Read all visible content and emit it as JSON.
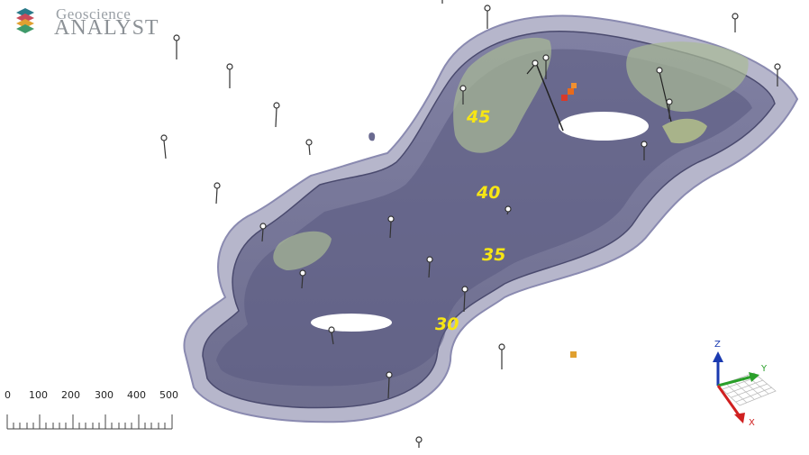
{
  "logo": {
    "line1": "Geoscience",
    "line2": "ANALYST"
  },
  "contour_labels": [
    "45",
    "40",
    "35",
    "30"
  ],
  "scale_bar": {
    "ticks": [
      "0",
      "100",
      "200",
      "300",
      "400",
      "500"
    ]
  },
  "axes": {
    "z": "Z",
    "y": "Y",
    "x": "X"
  },
  "colors": {
    "isosurface": "#5a5a80",
    "inner_shell": "#6b6b8c",
    "high_grade": "#9aae8a",
    "label": "#f7e614"
  }
}
